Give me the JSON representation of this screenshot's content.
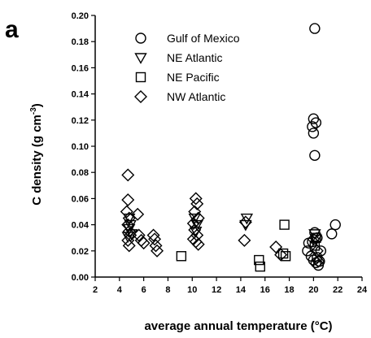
{
  "panel_label": "a",
  "chart_data": {
    "type": "scatter",
    "title": "",
    "xlabel": "average annual temperature (°C)",
    "ylabel": "C density (g cm",
    "ylabel_superscript": "-3",
    "ylabel_suffix": ")",
    "xlim": [
      2,
      24
    ],
    "ylim": [
      0,
      0.2
    ],
    "xticks": [
      2,
      4,
      6,
      8,
      10,
      12,
      14,
      16,
      18,
      20,
      22,
      24
    ],
    "yticks": [
      "0.00",
      "0.02",
      "0.04",
      "0.06",
      "0.08",
      "0.10",
      "0.12",
      "0.14",
      "0.16",
      "0.18",
      "0.20"
    ],
    "grid": false,
    "legend_position": "top-left",
    "series": [
      {
        "name": "Gulf of Mexico",
        "marker": "circle",
        "points": [
          [
            20.1,
            0.19
          ],
          [
            20.0,
            0.121
          ],
          [
            20.2,
            0.118
          ],
          [
            19.9,
            0.115
          ],
          [
            20.0,
            0.11
          ],
          [
            20.1,
            0.093
          ],
          [
            21.8,
            0.04
          ],
          [
            21.5,
            0.033
          ],
          [
            20.1,
            0.034
          ],
          [
            20.3,
            0.03
          ],
          [
            19.6,
            0.026
          ],
          [
            19.9,
            0.027
          ],
          [
            19.5,
            0.02
          ],
          [
            19.8,
            0.016
          ],
          [
            20.0,
            0.013
          ],
          [
            20.2,
            0.011
          ],
          [
            20.4,
            0.009
          ],
          [
            20.5,
            0.012
          ],
          [
            20.3,
            0.015
          ],
          [
            20.6,
            0.02
          ]
        ]
      },
      {
        "name": "NE Atlantic",
        "marker": "triangle-down",
        "points": [
          [
            4.8,
            0.045
          ],
          [
            4.9,
            0.04
          ],
          [
            4.8,
            0.037
          ],
          [
            5.0,
            0.033
          ],
          [
            4.7,
            0.031
          ],
          [
            10.2,
            0.045
          ],
          [
            10.4,
            0.04
          ],
          [
            10.3,
            0.035
          ],
          [
            14.5,
            0.045
          ],
          [
            14.4,
            0.04
          ],
          [
            20.1,
            0.033
          ],
          [
            20.2,
            0.029
          ]
        ]
      },
      {
        "name": "NE Pacific",
        "marker": "square",
        "points": [
          [
            9.1,
            0.016
          ],
          [
            15.5,
            0.013
          ],
          [
            15.6,
            0.008
          ],
          [
            17.6,
            0.04
          ],
          [
            17.5,
            0.018
          ],
          [
            17.7,
            0.016
          ],
          [
            20.1,
            0.024
          ],
          [
            20.2,
            0.03
          ]
        ]
      },
      {
        "name": "NW Atlantic",
        "marker": "diamond",
        "points": [
          [
            4.7,
            0.078
          ],
          [
            4.7,
            0.059
          ],
          [
            4.6,
            0.05
          ],
          [
            4.8,
            0.045
          ],
          [
            4.7,
            0.04
          ],
          [
            4.8,
            0.035
          ],
          [
            4.9,
            0.032
          ],
          [
            4.7,
            0.028
          ],
          [
            4.8,
            0.024
          ],
          [
            5.5,
            0.048
          ],
          [
            5.6,
            0.032
          ],
          [
            5.8,
            0.028
          ],
          [
            6.0,
            0.026
          ],
          [
            6.8,
            0.032
          ],
          [
            6.9,
            0.029
          ],
          [
            7.0,
            0.024
          ],
          [
            7.1,
            0.02
          ],
          [
            10.3,
            0.06
          ],
          [
            10.4,
            0.056
          ],
          [
            10.2,
            0.05
          ],
          [
            10.5,
            0.045
          ],
          [
            10.1,
            0.041
          ],
          [
            10.2,
            0.036
          ],
          [
            10.4,
            0.032
          ],
          [
            10.3,
            0.027
          ],
          [
            10.5,
            0.025
          ],
          [
            10.1,
            0.029
          ],
          [
            14.4,
            0.042
          ],
          [
            14.3,
            0.028
          ],
          [
            16.9,
            0.023
          ],
          [
            17.3,
            0.017
          ],
          [
            20.0,
            0.029
          ],
          [
            20.3,
            0.02
          ],
          [
            20.4,
            0.012
          ]
        ]
      }
    ]
  }
}
